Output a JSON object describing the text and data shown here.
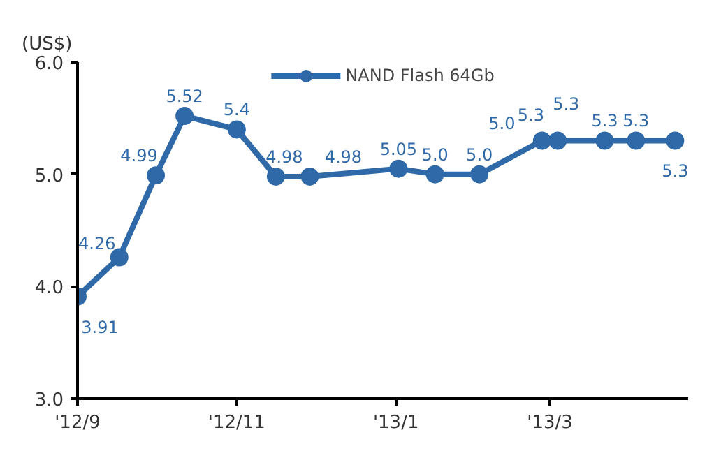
{
  "chart_data": {
    "type": "line",
    "ylabel": "(US$)",
    "x": [
      "2012-09-01",
      "2012-09-17",
      "2012-10-01",
      "2012-10-12",
      "2012-11-01",
      "2012-11-16",
      "2012-11-29",
      "2013-01-02",
      "2013-01-16",
      "2013-02-02",
      "2013-02-26",
      "2013-03-04",
      "2013-03-22",
      "2013-04-03",
      "2013-04-18"
    ],
    "series": [
      {
        "name": "NAND Flash 64Gb",
        "color": "#2f69a8",
        "values": [
          3.91,
          4.26,
          4.99,
          5.52,
          5.4,
          4.98,
          4.98,
          5.05,
          5.0,
          5.0,
          5.3,
          5.3,
          5.3,
          5.3,
          5.3
        ],
        "value_labels": [
          "3.91",
          "4.26",
          "4.99",
          "5.52",
          "5.4",
          "4.98",
          "4.98",
          "5.05",
          "5.0",
          "5.0",
          "5.3",
          "5.3",
          "5.3",
          "5.3",
          "5.3"
        ]
      }
    ],
    "annotations": [
      "5.0"
    ],
    "xlim": [
      "2012-09-01",
      "2013-04-23"
    ],
    "xticks": [
      {
        "value": "2012-09",
        "label": "'12/9"
      },
      {
        "value": "2012-11",
        "label": "'12/11"
      },
      {
        "value": "2013-01",
        "label": "'13/1"
      },
      {
        "value": "2013-03",
        "label": "'13/3"
      }
    ],
    "ylim": [
      3.0,
      6.0
    ],
    "yticks": [
      {
        "value": 3,
        "label": "3.0"
      },
      {
        "value": 4,
        "label": "4.0"
      },
      {
        "value": 5,
        "label": "5.0"
      },
      {
        "value": 6,
        "label": "6.0"
      }
    ],
    "legend": "top",
    "marker": "circle",
    "line_style": "solid"
  }
}
